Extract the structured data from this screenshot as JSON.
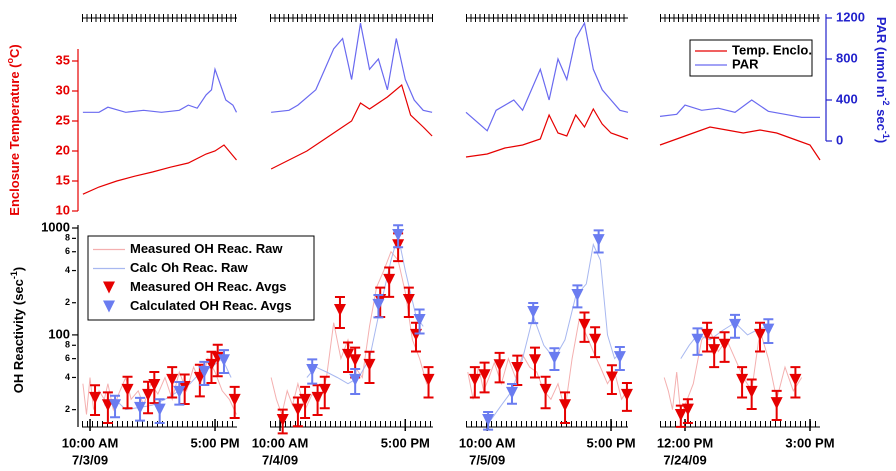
{
  "chart_data": [
    {
      "type": "line",
      "xlim": [
        9.55,
        18.23
      ],
      "ylim": [
        10,
        35
      ],
      "yticks": [
        10,
        15,
        20,
        25,
        30,
        35
      ],
      "ylabel": [
        "Enclosure Temperature (",
        "o",
        "C)"
      ],
      "series": [
        {
          "color": "#e60000",
          "x": [
            9.6,
            10.5,
            11.5,
            12.5,
            13.5,
            14.5,
            15.5,
            16.5,
            17,
            17.5,
            18.2
          ],
          "values": [
            12.8,
            14,
            15,
            15.8,
            16.5,
            17.3,
            18,
            19.5,
            20,
            21,
            18.5
          ]
        },
        {
          "color": "#6a6af0",
          "axis": "y2",
          "x": [
            9.6,
            10.5,
            11,
            12,
            13,
            14,
            15,
            15.5,
            16,
            16.5,
            16.8,
            17,
            17.3,
            17.6,
            18,
            18.2
          ],
          "values": [
            280,
            280,
            330,
            280,
            300,
            280,
            300,
            350,
            320,
            450,
            500,
            700,
            550,
            400,
            350,
            280
          ]
        }
      ]
    },
    {
      "type": "line",
      "xlim": [
        9.44,
        18.55
      ],
      "ylim": [
        10,
        35
      ],
      "series": [
        {
          "color": "#e60000",
          "x": [
            9.5,
            10.5,
            11.5,
            12.5,
            13.5,
            14,
            14.5,
            15,
            16,
            16.8,
            17.3,
            18,
            18.5
          ],
          "values": [
            17,
            18.5,
            20,
            22,
            24,
            25,
            28,
            27,
            29,
            31,
            26,
            24,
            22.5
          ]
        },
        {
          "color": "#6a6af0",
          "axis": "y2",
          "x": [
            9.5,
            10.5,
            11,
            12,
            12.5,
            13,
            13.5,
            14,
            14.5,
            15,
            15.5,
            16,
            16.5,
            17,
            17.5,
            18,
            18.5
          ],
          "values": [
            280,
            300,
            350,
            500,
            700,
            900,
            1000,
            600,
            1150,
            700,
            800,
            500,
            1000,
            600,
            400,
            300,
            280
          ]
        }
      ]
    },
    {
      "type": "line",
      "xlim": [
        8.8,
        17.96
      ],
      "ylim": [
        10,
        35
      ],
      "series": [
        {
          "color": "#e60000",
          "x": [
            8.8,
            10,
            11,
            12,
            13,
            13.5,
            14,
            14.5,
            15,
            15.5,
            16,
            16.5,
            17,
            17.96
          ],
          "values": [
            19,
            19.5,
            20.5,
            21,
            22,
            26,
            23,
            22.5,
            26,
            24,
            27,
            24.5,
            23,
            22
          ]
        },
        {
          "color": "#6a6af0",
          "axis": "y2",
          "x": [
            8.8,
            10,
            10.5,
            11.5,
            12,
            13,
            13.5,
            14,
            14.5,
            15,
            15.5,
            16,
            16.5,
            17,
            17.5,
            17.96
          ],
          "values": [
            280,
            100,
            300,
            400,
            300,
            700,
            400,
            800,
            600,
            1000,
            1150,
            700,
            500,
            400,
            300,
            280
          ]
        }
      ]
    },
    {
      "type": "line",
      "xlim": [
        11.4,
        15.24
      ],
      "ylim": [
        10,
        35
      ],
      "y2lim": [
        0,
        1200
      ],
      "y2ticks": [
        0,
        400,
        800,
        1200
      ],
      "y2label": [
        "PAR (umol m",
        "-2",
        " sec",
        "-1",
        ")"
      ],
      "legend": "upper right",
      "series": [
        {
          "name": "Temp. Enclo.",
          "color": "#e60000",
          "x": [
            11.4,
            11.8,
            12.2,
            12.6,
            13,
            13.4,
            13.8,
            14.2,
            14.6,
            15,
            15.24
          ],
          "values": [
            21,
            22,
            23,
            24,
            23.5,
            23,
            23.5,
            23,
            22,
            21,
            18.5
          ]
        },
        {
          "name": "PAR",
          "color": "#6a6af0",
          "axis": "y2",
          "x": [
            11.4,
            11.8,
            12,
            12.4,
            12.8,
            13.2,
            13.6,
            14,
            14.4,
            14.8,
            15.24
          ],
          "values": [
            240,
            260,
            350,
            300,
            320,
            280,
            400,
            290,
            260,
            230,
            230
          ]
        }
      ]
    },
    {
      "type": "scatter",
      "log_y": true,
      "xlim": [
        9.55,
        18.23
      ],
      "ylim": [
        15,
        1000
      ],
      "yticks": [
        {
          "value": 20,
          "label": "2"
        },
        {
          "value": 40,
          "label": "4"
        },
        {
          "value": 60,
          "label": "6"
        },
        {
          "value": 80,
          "label": "8"
        },
        100,
        {
          "value": 200,
          "label": "2"
        },
        {
          "value": 400,
          "label": "4"
        },
        {
          "value": 600,
          "label": "6"
        },
        {
          "value": 800,
          "label": "8"
        },
        1000
      ],
      "ylabel": [
        "OH Reactivity (sec",
        "-1",
        ")"
      ],
      "legend": "upper left",
      "xticks": [
        {
          "value": 10,
          "label": "10:00 AM"
        },
        {
          "value": 17,
          "label": "5:00 PM"
        }
      ],
      "date": "7/3/09",
      "series": [
        {
          "name": "Measured OH Reac. Raw",
          "style": "line",
          "color": "#f4b0b0",
          "x": [
            9.6,
            9.8,
            10,
            10.2,
            10.5,
            10.8,
            11,
            11.3,
            11.6,
            12,
            12.3,
            12.7,
            13,
            13.4,
            13.8,
            14.2,
            14.6,
            15,
            15.4,
            15.8,
            16.2,
            16.6,
            17,
            17.4,
            17.8,
            18.2
          ],
          "values": [
            35,
            18,
            40,
            20,
            30,
            25,
            35,
            20,
            28,
            40,
            25,
            30,
            22,
            35,
            28,
            40,
            25,
            45,
            30,
            50,
            35,
            60,
            45,
            30,
            25,
            18
          ]
        },
        {
          "name": "Calc Oh Reac. Raw",
          "style": "line",
          "color": "#a8b8f0",
          "x": [
            10.8,
            11.4,
            12,
            12.8,
            13.5,
            14.2,
            15,
            15.6,
            16.2,
            16.8,
            17.4,
            17.9
          ],
          "values": [
            22,
            25,
            20,
            21,
            22,
            25,
            30,
            35,
            45,
            50,
            60,
            40
          ]
        },
        {
          "name": "Measured OH Reac. Avgs",
          "style": "triangle",
          "color": "#e60000",
          "x": [
            10.28,
            11,
            12.1,
            13.25,
            13.6,
            14.6,
            15.3,
            16.15,
            16.8,
            17.15,
            18.1
          ],
          "values": [
            25.8,
            22,
            30.6,
            27.5,
            34,
            38,
            32.6,
            39.6,
            52.5,
            61,
            24.7
          ],
          "errors": [
            8,
            7,
            10,
            9,
            11,
            12,
            10,
            13,
            17,
            20,
            8
          ]
        },
        {
          "name": "Calculated OH Reac. Avgs",
          "style": "triangle",
          "color": "#6a7cf0",
          "x": [
            11.4,
            12.8,
            13.9,
            15,
            16.4,
            17.5
          ],
          "values": [
            22,
            20.8,
            20,
            29.3,
            45,
            58
          ],
          "errors": [
            5,
            5,
            5,
            7,
            11,
            14
          ]
        }
      ]
    },
    {
      "type": "scatter",
      "log_y": true,
      "xlim": [
        9.44,
        18.55
      ],
      "ylim": [
        15,
        1000
      ],
      "xticks": [
        {
          "value": 10,
          "label": "10:00 AM"
        },
        {
          "value": 17,
          "label": "5:00 PM"
        }
      ],
      "date": "7/4/09",
      "series": [
        {
          "style": "line",
          "color": "#f4b0b0",
          "x": [
            9.5,
            9.8,
            10.1,
            10.4,
            10.7,
            11,
            11.4,
            11.8,
            12.2,
            12.6,
            13,
            13.4,
            13.8,
            14.2,
            14.6,
            15,
            15.4,
            15.8,
            16.2,
            16.6,
            17,
            17.4,
            17.8,
            18.2,
            18.5
          ],
          "values": [
            40,
            25,
            18,
            30,
            22,
            35,
            20,
            28,
            24,
            40,
            130,
            60,
            90,
            50,
            40,
            120,
            280,
            400,
            600,
            500,
            250,
            90,
            60,
            35,
            40
          ]
        },
        {
          "style": "line",
          "color": "#a8b8f0",
          "x": [
            11.5,
            12,
            12.6,
            13.2,
            13.8,
            14.4,
            15,
            15.6,
            16.2,
            16.6,
            17,
            17.6,
            18
          ],
          "values": [
            40,
            50,
            45,
            40,
            35,
            40,
            60,
            180,
            500,
            850,
            400,
            150,
            120
          ]
        },
        {
          "style": "triangle",
          "color": "#e60000",
          "x": [
            10.15,
            11,
            11.4,
            12.1,
            12.5,
            13.35,
            13.8,
            14.2,
            15,
            15.6,
            16.1,
            16.6,
            17.2,
            17.6,
            18.3
          ],
          "values": [
            16,
            20,
            24.7,
            25.8,
            30.6,
            171,
            65,
            58,
            52.5,
            212,
            327,
            690,
            212,
            100,
            38
          ],
          "errors": [
            4,
            6,
            8,
            8,
            10,
            55,
            20,
            18,
            17,
            65,
            100,
            200,
            65,
            30,
            12
          ]
        },
        {
          "style": "triangle",
          "color": "#6a7cf0",
          "x": [
            11.8,
            14.2,
            15.5,
            16.6,
            17.8
          ],
          "values": [
            47,
            38,
            191,
            860,
            138
          ],
          "errors": [
            12,
            10,
            45,
            200,
            35
          ]
        }
      ]
    },
    {
      "type": "scatter",
      "log_y": true,
      "xlim": [
        8.8,
        17.96
      ],
      "ylim": [
        15,
        1000
      ],
      "xticks": [
        {
          "value": 10,
          "label": "10:00 AM"
        },
        {
          "value": 17,
          "label": "5:00 PM"
        }
      ],
      "date": "7/5/09",
      "series": [
        {
          "style": "line",
          "color": "#f4b0b0",
          "x": [
            8.9,
            9.2,
            9.5,
            9.8,
            10.1,
            10.4,
            10.8,
            11.2,
            11.6,
            12,
            12.4,
            12.8,
            13.2,
            13.6,
            14,
            14.4,
            14.8,
            15.2,
            15.6,
            16,
            16.4,
            16.8,
            17.2,
            17.6,
            17.9
          ],
          "values": [
            45,
            25,
            50,
            30,
            40,
            55,
            35,
            60,
            40,
            65,
            50,
            45,
            30,
            25,
            35,
            20,
            60,
            140,
            100,
            70,
            50,
            35,
            45,
            25,
            30
          ]
        },
        {
          "style": "line",
          "color": "#a8b8f0",
          "x": [
            9.8,
            10.2,
            10.8,
            11.4,
            12,
            12.6,
            13.2,
            13.8,
            14.4,
            15,
            15.6,
            16,
            16.4,
            16.8,
            17.2,
            17.6
          ],
          "values": [
            18,
            16,
            22,
            30,
            60,
            150,
            80,
            60,
            90,
            230,
            300,
            700,
            500,
            100,
            60,
            70
          ]
        },
        {
          "style": "triangle",
          "color": "#e60000",
          "x": [
            9.3,
            9.85,
            10.7,
            11.7,
            12.7,
            13.3,
            14.4,
            15.5,
            16.1,
            17.05,
            17.9
          ],
          "values": [
            38,
            42,
            52,
            49,
            58,
            30.6,
            22,
            124,
            90,
            40,
            27.5
          ],
          "errors": [
            12,
            13,
            16,
            15,
            18,
            10,
            7,
            38,
            28,
            12,
            8
          ]
        },
        {
          "style": "triangle",
          "color": "#6a7cf0",
          "x": [
            10.05,
            11.4,
            12.6,
            13.8,
            15.1,
            16.3,
            17.5
          ],
          "values": [
            16,
            28.7,
            164,
            61,
            236,
            770,
            62
          ],
          "errors": [
            3,
            6,
            35,
            14,
            55,
            180,
            15
          ]
        }
      ]
    },
    {
      "type": "scatter",
      "log_y": true,
      "xlim": [
        11.4,
        15.24
      ],
      "ylim": [
        15,
        1000
      ],
      "xticks": [
        {
          "value": 12,
          "label": "12:00 PM"
        },
        {
          "value": 15,
          "label": "3:00 PM"
        }
      ],
      "date": "7/24/09",
      "series": [
        {
          "style": "line",
          "color": "#f4b0b0",
          "x": [
            11.5,
            11.6,
            11.7,
            11.8,
            11.9,
            12,
            12.2,
            12.4,
            12.6,
            12.8,
            13,
            13.2,
            13.4,
            13.6,
            13.8,
            14,
            14.2,
            14.4,
            14.6,
            14.8
          ],
          "values": [
            40,
            30,
            20,
            45,
            18,
            22,
            35,
            90,
            110,
            70,
            90,
            60,
            40,
            30,
            110,
            60,
            25,
            50,
            30,
            40
          ]
        },
        {
          "style": "line",
          "color": "#a8b8f0",
          "x": [
            11.9,
            12.1,
            12.3,
            12.6,
            12.9,
            13.2,
            13.5,
            13.8,
            14.1
          ],
          "values": [
            60,
            80,
            100,
            90,
            110,
            130,
            100,
            115,
            120
          ]
        },
        {
          "style": "triangle",
          "color": "#e60000",
          "x": [
            11.9,
            12.07,
            12.53,
            12.7,
            12.95,
            13.37,
            13.6,
            13.8,
            14.2,
            14.65
          ],
          "values": [
            17.8,
            20,
            100,
            72,
            81,
            38,
            29.3,
            100,
            23,
            38
          ],
          "errors": [
            4,
            5,
            30,
            22,
            25,
            12,
            9,
            30,
            7,
            12
          ]
        },
        {
          "style": "triangle",
          "color": "#6a7cf0",
          "x": [
            12.3,
            13.2,
            14
          ],
          "values": [
            90,
            124,
            112
          ],
          "errors": [
            25,
            30,
            28
          ]
        }
      ]
    }
  ]
}
